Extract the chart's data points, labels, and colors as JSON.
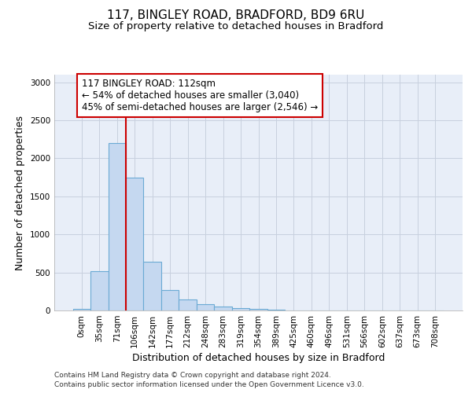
{
  "title1": "117, BINGLEY ROAD, BRADFORD, BD9 6RU",
  "title2": "Size of property relative to detached houses in Bradford",
  "xlabel": "Distribution of detached houses by size in Bradford",
  "ylabel": "Number of detached properties",
  "footer1": "Contains HM Land Registry data © Crown copyright and database right 2024.",
  "footer2": "Contains public sector information licensed under the Open Government Licence v3.0.",
  "categories": [
    "0sqm",
    "35sqm",
    "71sqm",
    "106sqm",
    "142sqm",
    "177sqm",
    "212sqm",
    "248sqm",
    "283sqm",
    "319sqm",
    "354sqm",
    "389sqm",
    "425sqm",
    "460sqm",
    "496sqm",
    "531sqm",
    "566sqm",
    "602sqm",
    "637sqm",
    "673sqm",
    "708sqm"
  ],
  "values": [
    25,
    520,
    2200,
    1750,
    640,
    270,
    140,
    80,
    50,
    30,
    20,
    8,
    4,
    2,
    2,
    0,
    0,
    0,
    0,
    0,
    0
  ],
  "bar_color": "#c5d8f0",
  "bar_edge_color": "#6aaad4",
  "vline_color": "#cc0000",
  "annotation_line1": "117 BINGLEY ROAD: 112sqm",
  "annotation_line2": "← 54% of detached houses are smaller (3,040)",
  "annotation_line3": "45% of semi-detached houses are larger (2,546) →",
  "annotation_box_facecolor": "#ffffff",
  "annotation_box_edgecolor": "#cc0000",
  "ylim": [
    0,
    3100
  ],
  "yticks": [
    0,
    500,
    1000,
    1500,
    2000,
    2500,
    3000
  ],
  "grid_color": "#c8d0de",
  "bg_color": "#e8eef8",
  "title1_fontsize": 11,
  "title2_fontsize": 9.5,
  "tick_fontsize": 7.5,
  "label_fontsize": 9,
  "footer_fontsize": 6.5,
  "ann_fontsize": 8.5
}
